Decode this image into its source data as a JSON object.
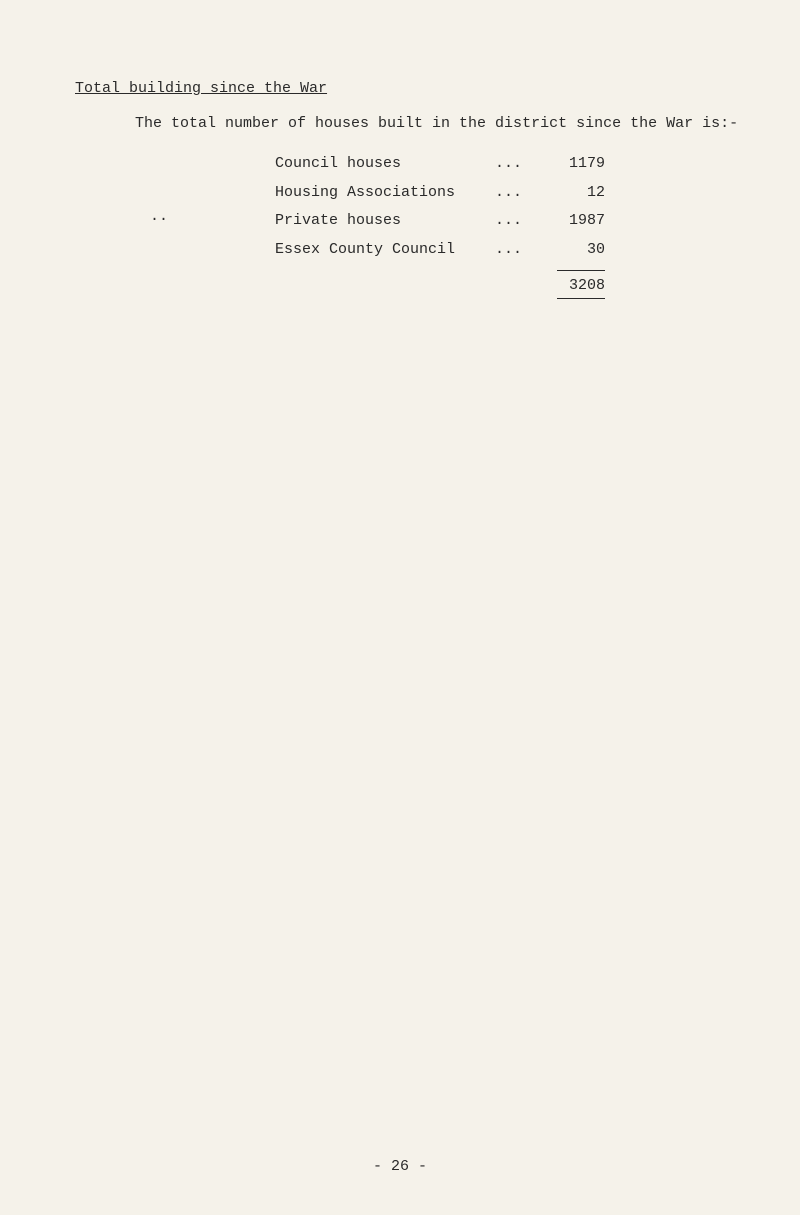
{
  "heading": "Total building since the War",
  "intro": "The total number of houses built in the district since the War is:-",
  "rows": [
    {
      "label": "Council houses",
      "dots": "...",
      "value": "1179"
    },
    {
      "label": "Housing Associations",
      "dots": "...",
      "value": "12"
    },
    {
      "label": "Private houses",
      "dots": "...",
      "value": "1987"
    },
    {
      "label": "Essex County Council",
      "dots": "...",
      "value": "30"
    }
  ],
  "total": "3208",
  "side_dots": "..",
  "page_number": "- 26 -"
}
